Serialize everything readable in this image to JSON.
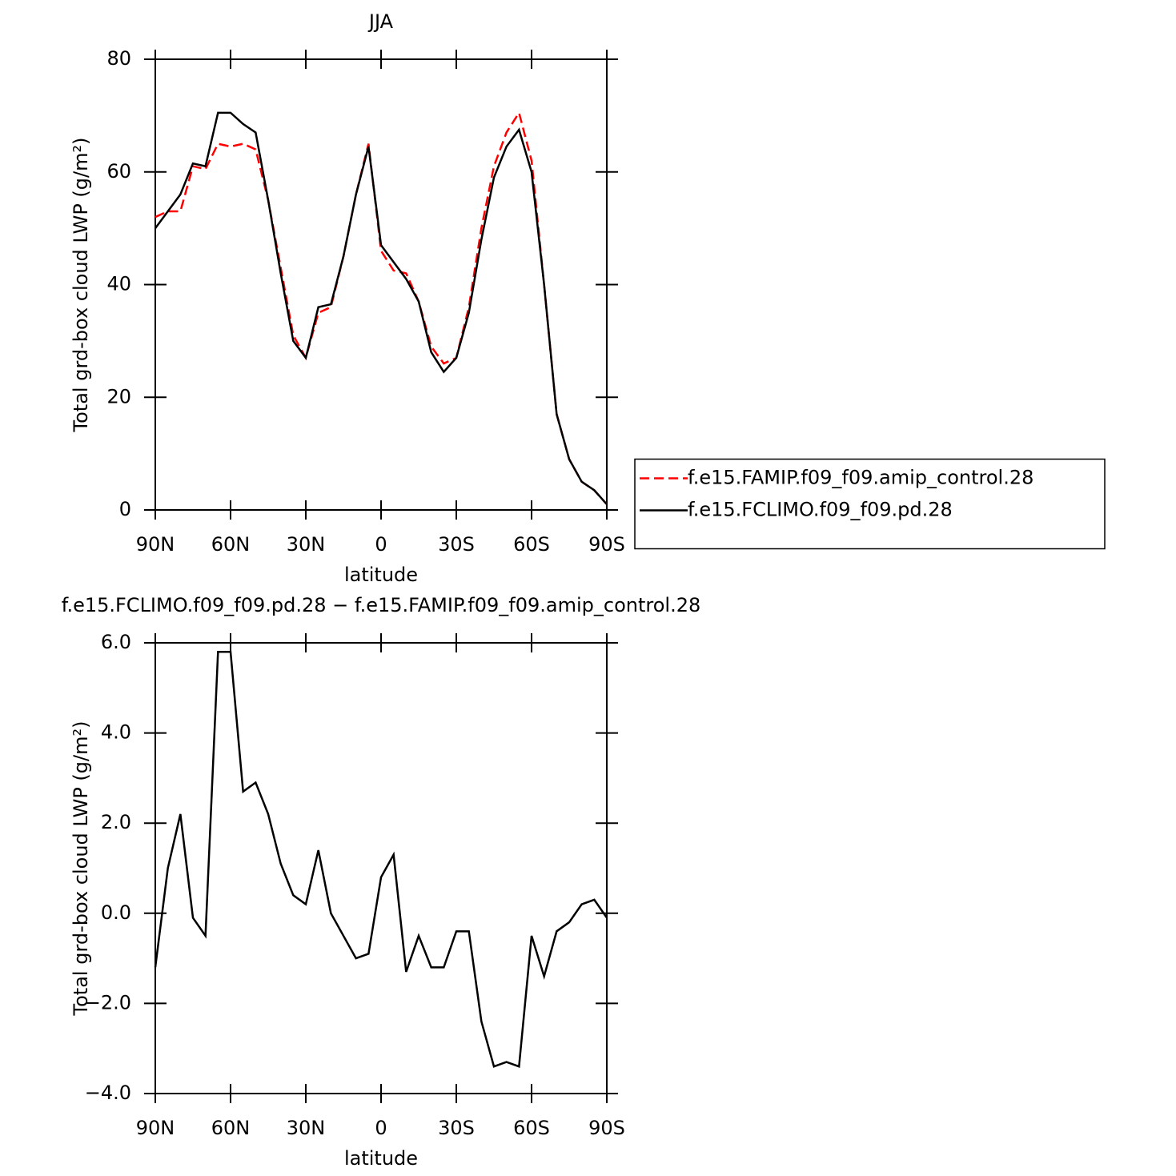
{
  "chart_data": [
    {
      "type": "line",
      "title": "JJA",
      "xlabel": "latitude",
      "ylabel": "Total grd-box cloud LWP (g/m²)",
      "x": [
        90,
        85,
        80,
        75,
        70,
        65,
        60,
        55,
        50,
        45,
        40,
        35,
        30,
        25,
        20,
        15,
        10,
        5,
        0,
        -5,
        -10,
        -15,
        -20,
        -25,
        -30,
        -35,
        -40,
        -45,
        -50,
        -55,
        -60,
        -65,
        -70,
        -75,
        -80,
        -85,
        -90
      ],
      "series": [
        {
          "name": "f.e15.FAMIP.f09_f09.amip_control.28",
          "color": "#ff0000",
          "line_style": "dashed",
          "values": [
            52,
            53,
            53,
            61,
            60.5,
            65,
            64.5,
            65,
            64,
            55,
            43,
            31,
            27,
            35,
            36,
            45,
            56,
            65,
            46,
            42.5,
            42,
            37,
            29,
            26,
            27,
            36,
            50,
            61,
            67,
            70.5,
            62,
            40,
            17,
            9,
            5,
            3.5,
            1
          ]
        },
        {
          "name": "f.e15.FCLIMO.f09_f09.pd.28",
          "color": "#000000",
          "line_style": "solid",
          "values": [
            50,
            53,
            56,
            61.5,
            61,
            70.5,
            70.5,
            68.5,
            67,
            55,
            42,
            30,
            27,
            36,
            36.5,
            45,
            56,
            64.5,
            47,
            44,
            41,
            37,
            28,
            24.5,
            27,
            35,
            48,
            59,
            64.5,
            67.5,
            60,
            40,
            17,
            9,
            5,
            3.5,
            1
          ]
        }
      ],
      "xlim": [
        90,
        -90
      ],
      "xticks": [
        {
          "value": 90,
          "label": "90N"
        },
        {
          "value": 60,
          "label": "60N"
        },
        {
          "value": 30,
          "label": "30N"
        },
        0,
        {
          "value": -30,
          "label": "30S"
        },
        {
          "value": -60,
          "label": "60S"
        },
        {
          "value": -90,
          "label": "90S"
        }
      ],
      "ylim": [
        0,
        80
      ],
      "yticks": [
        0,
        20,
        40,
        60,
        80
      ],
      "legend": "right"
    },
    {
      "type": "line",
      "title": "f.e15.FCLIMO.f09_f09.pd.28 − f.e15.FAMIP.f09_f09.amip_control.28",
      "xlabel": "latitude",
      "ylabel": "Total grd-box cloud LWP (g/m²)",
      "x": [
        90,
        85,
        80,
        75,
        70,
        65,
        60,
        55,
        50,
        45,
        40,
        35,
        30,
        25,
        20,
        15,
        10,
        5,
        0,
        -5,
        -10,
        -15,
        -20,
        -25,
        -30,
        -35,
        -40,
        -45,
        -50,
        -55,
        -60,
        -65,
        -70,
        -75,
        -80,
        -85,
        -90
      ],
      "series": [
        {
          "color": "#000000",
          "line_style": "solid",
          "values": [
            -1.2,
            1.0,
            2.2,
            -0.1,
            -0.5,
            5.8,
            5.8,
            2.7,
            2.9,
            2.2,
            1.1,
            0.4,
            0.2,
            1.4,
            0.0,
            -0.5,
            -1.0,
            -0.9,
            0.8,
            1.3,
            -1.3,
            -0.5,
            -1.2,
            -1.2,
            -0.4,
            -0.4,
            -2.4,
            -3.4,
            -3.3,
            -3.4,
            -0.5,
            -1.4,
            -0.4,
            -0.2,
            0.2,
            0.3,
            -0.1
          ]
        }
      ],
      "xlim": [
        90,
        -90
      ],
      "xticks": [
        {
          "value": 90,
          "label": "90N"
        },
        {
          "value": 60,
          "label": "60N"
        },
        {
          "value": 30,
          "label": "30N"
        },
        0,
        {
          "value": -30,
          "label": "30S"
        },
        {
          "value": -60,
          "label": "60S"
        },
        {
          "value": -90,
          "label": "90S"
        }
      ],
      "ylim": [
        -4,
        6
      ],
      "yticks": [
        {
          "value": -4,
          "label": "−4.0"
        },
        {
          "value": -2,
          "label": "−2.0"
        },
        {
          "value": 0,
          "label": "0.0"
        },
        {
          "value": 2,
          "label": "2.0"
        },
        {
          "value": 4,
          "label": "4.0"
        },
        {
          "value": 6,
          "label": "6.0"
        }
      ]
    }
  ]
}
